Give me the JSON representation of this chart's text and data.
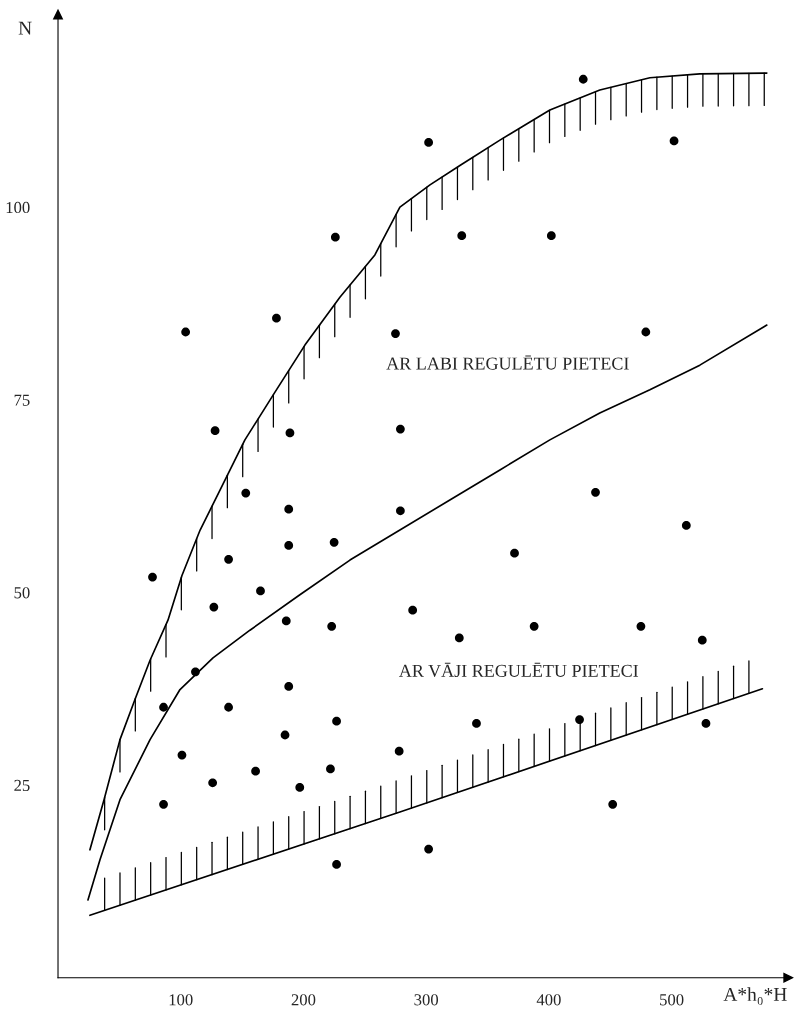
{
  "chart_data": {
    "type": "scatter",
    "xlabel": "A*h₀*H",
    "ylabel": "N",
    "xlim": [
      0,
      595
    ],
    "ylim": [
      0,
      125
    ],
    "xticks": [
      100,
      200,
      300,
      400,
      500
    ],
    "yticks": [
      25,
      50,
      75,
      100
    ],
    "grid": false,
    "legend": false,
    "annotations": [
      "AR LABI REGULĒTU PIETECI",
      "AR VĀJI REGULĒTU PIETECI"
    ],
    "series": [
      {
        "marker": "circle",
        "color": "#000000",
        "x": [
          428,
          302,
          502,
          226,
          329,
          402,
          104,
          178,
          275,
          479,
          128,
          189,
          279,
          153,
          188,
          279,
          438,
          188,
          225,
          372,
          512,
          77,
          139,
          165,
          127,
          186,
          223,
          289,
          327,
          388,
          475,
          525,
          112,
          86,
          139,
          188,
          185,
          227,
          341,
          425,
          528,
          101,
          126,
          161,
          197,
          222,
          278,
          86,
          452,
          227,
          302
        ],
        "values": [
          116.6,
          108.4,
          108.6,
          96.1,
          96.3,
          96.3,
          83.8,
          85.6,
          83.6,
          83.8,
          71.0,
          70.7,
          71.2,
          62.9,
          60.8,
          60.6,
          63.0,
          56.1,
          56.5,
          55.1,
          58.7,
          52.0,
          54.3,
          50.2,
          48.1,
          46.3,
          45.6,
          47.7,
          44.1,
          45.6,
          45.6,
          43.8,
          39.7,
          35.1,
          35.1,
          37.8,
          31.5,
          33.3,
          33.0,
          33.5,
          33.0,
          28.9,
          25.3,
          26.8,
          24.7,
          27.1,
          29.4,
          22.5,
          22.5,
          14.7,
          16.7
        ]
      },
      {
        "type": "line",
        "color": "#000000",
        "x": [
          26,
          37.5,
          50.5,
          62.7,
          75,
          89.6,
          101,
          115.8,
          132.1,
          152.3,
          176.8,
          201.2,
          229.7,
          258.2,
          278.6,
          303.1,
          327.5,
          360.1,
          400.8,
          441.5,
          482.3,
          523,
          577.6
        ],
        "values": [
          16.6,
          23.1,
          30.9,
          36.1,
          41.2,
          46.4,
          52.2,
          58.1,
          63.3,
          69.8,
          76.0,
          82.1,
          88.3,
          93.8,
          100.0,
          102.9,
          105.4,
          108.7,
          112.6,
          115.2,
          116.8,
          117.3,
          117.4
        ]
      },
      {
        "type": "line",
        "color": "#000000",
        "x": [
          24.4,
          34.2,
          50.5,
          75,
          99.4,
          126.3,
          156.4,
          197.1,
          237.9,
          278.6,
          319.3,
          360.1,
          400.8,
          441.5,
          482.3,
          523,
          577.6
        ],
        "values": [
          10.1,
          15.3,
          23.1,
          30.9,
          37.4,
          41.5,
          45.1,
          49.7,
          54.2,
          58.1,
          62.0,
          65.9,
          69.8,
          73.3,
          76.3,
          79.5,
          84.7
        ]
      },
      {
        "type": "line",
        "color": "#000000",
        "x": [
          26,
          278.6,
          574
        ],
        "values": [
          8.1,
          21.5,
          37.5
        ]
      }
    ]
  }
}
